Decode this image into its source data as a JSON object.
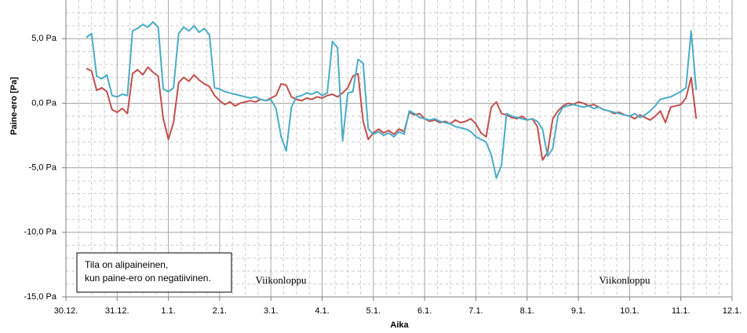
{
  "chart_data": {
    "type": "line",
    "y_label": "Paine-ero [Pa]",
    "x_label": "Aika",
    "note": [
      "Tila on alipaineinen,",
      "kun paine-ero on negatiivinen."
    ],
    "annotations": [
      "Viikonloppu",
      "Viikonloppu"
    ],
    "xlim": [
      0,
      13
    ],
    "xticks": [
      {
        "value": 0,
        "label": "30.12."
      },
      {
        "value": 1,
        "label": "31.12."
      },
      {
        "value": 2,
        "label": "1.1."
      },
      {
        "value": 3,
        "label": "2.1."
      },
      {
        "value": 4,
        "label": "3.1."
      },
      {
        "value": 5,
        "label": "4.1."
      },
      {
        "value": 6,
        "label": "5.1."
      },
      {
        "value": 7,
        "label": "6.1."
      },
      {
        "value": 8,
        "label": "7.1."
      },
      {
        "value": 9,
        "label": "8.1."
      },
      {
        "value": 10,
        "label": "9.1."
      },
      {
        "value": 11,
        "label": "10.1."
      },
      {
        "value": 12,
        "label": "11.1."
      },
      {
        "value": 13,
        "label": "12.1."
      }
    ],
    "ylim": [
      -15,
      8
    ],
    "yticks": [
      {
        "value": -15,
        "label": "-15,0 Pa"
      },
      {
        "value": -10,
        "label": "-10,0 Pa"
      },
      {
        "value": -5,
        "label": "-5,0 Pa"
      },
      {
        "value": 0,
        "label": "0,0 Pa"
      },
      {
        "value": 5,
        "label": "5,0 Pa"
      }
    ],
    "grid": true,
    "x": [
      0.4,
      0.5,
      0.6,
      0.7,
      0.8,
      0.9,
      1.0,
      1.1,
      1.2,
      1.3,
      1.4,
      1.5,
      1.6,
      1.7,
      1.8,
      1.9,
      2.0,
      2.1,
      2.2,
      2.3,
      2.4,
      2.5,
      2.6,
      2.7,
      2.8,
      2.9,
      3.0,
      3.1,
      3.2,
      3.3,
      3.4,
      3.5,
      3.6,
      3.7,
      3.8,
      3.9,
      4.0,
      4.1,
      4.2,
      4.3,
      4.4,
      4.5,
      4.6,
      4.7,
      4.8,
      4.9,
      5.0,
      5.1,
      5.2,
      5.3,
      5.4,
      5.5,
      5.6,
      5.7,
      5.8,
      5.9,
      6.0,
      6.1,
      6.2,
      6.3,
      6.4,
      6.5,
      6.6,
      6.7,
      6.8,
      6.9,
      7.0,
      7.1,
      7.2,
      7.3,
      7.4,
      7.5,
      7.6,
      7.7,
      7.8,
      7.9,
      8.0,
      8.1,
      8.2,
      8.3,
      8.4,
      8.5,
      8.6,
      8.7,
      8.8,
      8.9,
      9.0,
      9.1,
      9.2,
      9.3,
      9.4,
      9.5,
      9.6,
      9.7,
      9.8,
      9.9,
      10.0,
      10.1,
      10.2,
      10.3,
      10.4,
      10.5,
      10.6,
      10.7,
      10.8,
      10.9,
      11.0,
      11.1,
      11.2,
      11.3,
      11.4,
      11.5,
      11.6,
      11.7,
      11.8,
      11.9,
      12.0,
      12.1,
      12.2,
      12.3
    ],
    "series": [
      {
        "color": "#c0504d",
        "values": [
          2.7,
          2.5,
          1.0,
          1.2,
          0.9,
          -0.5,
          -0.7,
          -0.4,
          -0.8,
          2.3,
          2.6,
          2.2,
          2.8,
          2.4,
          2.1,
          -1.2,
          -2.8,
          -1.5,
          1.6,
          2.0,
          1.7,
          2.2,
          1.8,
          1.5,
          1.3,
          0.6,
          0.2,
          -0.1,
          0.1,
          -0.2,
          0.0,
          0.1,
          0.2,
          0.1,
          0.3,
          0.2,
          0.4,
          0.6,
          1.5,
          1.4,
          0.5,
          0.3,
          0.2,
          0.4,
          0.3,
          0.5,
          0.4,
          0.6,
          0.7,
          0.5,
          0.8,
          1.2,
          2.1,
          2.3,
          -1.4,
          -2.8,
          -2.3,
          -2.0,
          -2.3,
          -2.1,
          -2.4,
          -2.0,
          -2.2,
          -0.7,
          -0.9,
          -0.8,
          -1.2,
          -1.4,
          -1.3,
          -1.5,
          -1.4,
          -1.6,
          -1.3,
          -1.5,
          -1.4,
          -1.2,
          -1.6,
          -2.3,
          -2.6,
          -0.3,
          0.1,
          -0.8,
          -0.9,
          -1.1,
          -1.2,
          -1.0,
          -1.3,
          -1.2,
          -1.8,
          -4.4,
          -3.8,
          -1.2,
          -0.6,
          -0.2,
          0.0,
          -0.1,
          0.1,
          0.0,
          -0.2,
          -0.1,
          -0.3,
          -0.5,
          -0.6,
          -0.8,
          -0.7,
          -0.9,
          -1.0,
          -1.2,
          -0.9,
          -1.1,
          -1.3,
          -1.0,
          -0.6,
          -1.5,
          -0.3,
          -0.2,
          -0.1,
          0.4,
          2.0,
          -1.2
        ]
      },
      {
        "color": "#4bacc6",
        "values": [
          5.1,
          5.4,
          2.1,
          1.9,
          2.2,
          0.6,
          0.5,
          0.7,
          0.6,
          5.6,
          5.8,
          6.1,
          5.9,
          6.3,
          5.9,
          1.1,
          0.9,
          1.2,
          5.4,
          5.9,
          5.6,
          6.0,
          5.5,
          5.8,
          5.3,
          1.2,
          1.1,
          0.9,
          0.8,
          0.7,
          0.6,
          0.5,
          0.4,
          0.5,
          0.3,
          0.2,
          0.3,
          -0.4,
          -2.6,
          -3.7,
          -0.3,
          0.5,
          0.6,
          0.8,
          0.7,
          0.9,
          0.6,
          0.8,
          4.8,
          4.3,
          -2.9,
          0.8,
          0.9,
          3.4,
          3.1,
          -2.0,
          -2.4,
          -2.2,
          -2.5,
          -2.3,
          -2.6,
          -2.2,
          -2.4,
          -0.6,
          -0.8,
          -1.1,
          -1.2,
          -1.3,
          -1.2,
          -1.4,
          -1.5,
          -1.6,
          -1.8,
          -1.9,
          -2.0,
          -2.2,
          -2.6,
          -2.8,
          -3.0,
          -4.0,
          -5.8,
          -4.8,
          -0.8,
          -1.0,
          -1.1,
          -1.2,
          -1.3,
          -1.2,
          -1.4,
          -2.0,
          -4.1,
          -3.5,
          -1.0,
          -0.3,
          -0.2,
          -0.1,
          -0.2,
          -0.3,
          -0.2,
          -0.4,
          -0.3,
          -0.5,
          -0.6,
          -0.7,
          -0.8,
          -0.9,
          -1.0,
          -0.8,
          -1.1,
          -0.9,
          -0.6,
          -0.2,
          0.3,
          0.4,
          0.5,
          0.7,
          0.9,
          1.2,
          5.6,
          1.0
        ]
      }
    ]
  }
}
